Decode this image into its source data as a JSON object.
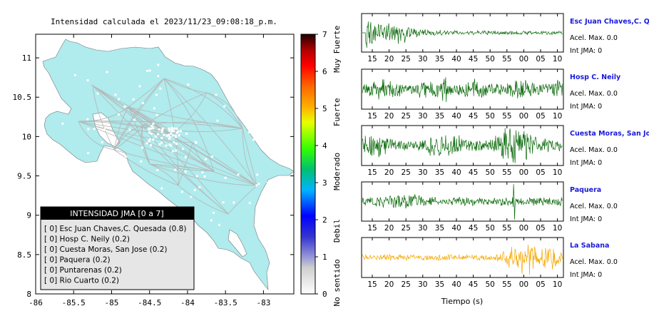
{
  "map": {
    "title": "Intensidad calculada el 2023/11/23_09:08:18_p.m.",
    "x_ticks": [
      "-86",
      "-85.5",
      "-85",
      "-84.5",
      "-84",
      "-83.5",
      "-83"
    ],
    "y_ticks": [
      "11",
      "10.5",
      "10",
      "9.5",
      "9",
      "8.5",
      "8"
    ],
    "land_color": "#b0ebed"
  },
  "colorbar": {
    "ticks": [
      "7",
      "6",
      "5",
      "4",
      "3",
      "2",
      "1",
      "0"
    ],
    "labels": [
      "Muy Fuerte",
      "Fuerte",
      "Moderado",
      "Debil",
      "No sentido"
    ]
  },
  "legend": {
    "title": "INTENSIDAD JMA [0 a 7]",
    "items": [
      "[ 0]  Esc Juan Chaves,C. Quesada (0.8)",
      "[ 0]  Hosp C. Neily (0.2)",
      "[ 0]  Cuesta Moras, San Jose (0.2)",
      "[ 0]  Paquera (0.2)",
      "[ 0]  Puntarenas (0.2)",
      "[ 0]  Rio Cuarto (0.2)"
    ]
  },
  "traces": {
    "x_ticks": [
      "15",
      "20",
      "25",
      "30",
      "35",
      "40",
      "45",
      "50",
      "55",
      "00",
      "05",
      "10"
    ],
    "xlabel": "Tiempo (s)",
    "stations": [
      {
        "name": "Esc Juan Chaves,C. Qu",
        "acel": "Acel. Max. 0.0",
        "int": "Int JMA: 0",
        "color": "#0b6b0b"
      },
      {
        "name": "Hosp C. Neily",
        "acel": "Acel. Max. 0.0",
        "int": "Int JMA: 0",
        "color": "#0b6b0b"
      },
      {
        "name": "Cuesta Moras, San Jose",
        "acel": "Acel. Max. 0.0",
        "int": "Int JMA: 0",
        "color": "#0b6b0b"
      },
      {
        "name": "Paquera",
        "acel": "Acel. Max. 0.0",
        "int": "Int JMA: 0",
        "color": "#0b6b0b"
      },
      {
        "name": "La Sabana",
        "acel": "Acel. Max. 0.0",
        "int": "Int JMA: 0",
        "color": "#f5a800"
      }
    ]
  },
  "chart_data": [
    {
      "type": "scatter",
      "title": "Intensidad calculada el 2023/11/23_09:08:18_p.m.",
      "xlim": [
        -86,
        -82.6
      ],
      "ylim": [
        8,
        11.3
      ],
      "x_ticks": [
        -86,
        -85.5,
        -85,
        -84.5,
        -84,
        -83.5,
        -83
      ],
      "y_ticks": [
        8,
        8.5,
        9,
        9.5,
        10,
        10.5,
        11
      ],
      "colorbar": {
        "range": [
          0,
          7
        ],
        "labels": [
          "No sentido",
          "Debil",
          "Moderado",
          "Fuerte",
          "Muy Fuerte"
        ]
      },
      "legend_placement": "bottom-left",
      "legend_title": "INTENSIDAD JMA [0 a 7]",
      "stations": [
        {
          "name": "Esc Juan Chaves,C. Quesada",
          "jma": 0,
          "value": 0.8
        },
        {
          "name": "Hosp C. Neily",
          "jma": 0,
          "value": 0.2
        },
        {
          "name": "Cuesta Moras, San Jose",
          "jma": 0,
          "value": 0.2
        },
        {
          "name": "Paquera",
          "jma": 0,
          "value": 0.2
        },
        {
          "name": "Puntarenas",
          "jma": 0,
          "value": 0.2
        },
        {
          "name": "Rio Cuarto",
          "jma": 0,
          "value": 0.2
        }
      ]
    },
    {
      "type": "line",
      "xlabel": "Tiempo (s)",
      "x_tick_labels": [
        "15",
        "20",
        "25",
        "30",
        "35",
        "40",
        "45",
        "50",
        "55",
        "00",
        "05",
        "10"
      ],
      "series": [
        {
          "name": "Esc Juan Chaves,C. Qu",
          "acel_max": 0.0,
          "int_jma": 0
        },
        {
          "name": "Hosp C. Neily",
          "acel_max": 0.0,
          "int_jma": 0
        },
        {
          "name": "Cuesta Moras, San Jose",
          "acel_max": 0.0,
          "int_jma": 0
        },
        {
          "name": "Paquera",
          "acel_max": 0.0,
          "int_jma": 0
        },
        {
          "name": "La Sabana",
          "acel_max": 0.0,
          "int_jma": 0
        }
      ]
    }
  ]
}
